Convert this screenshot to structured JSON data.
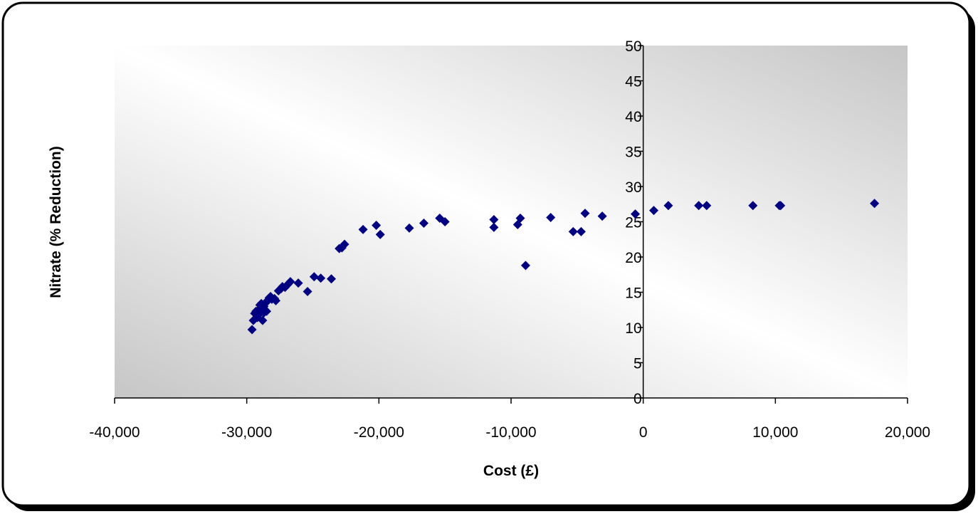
{
  "chart_data": {
    "type": "scatter",
    "title": "",
    "xlabel": "Cost (£)",
    "ylabel": "Nitrate (% Reduction)",
    "xlim": [
      -40000,
      20000
    ],
    "ylim": [
      0,
      50
    ],
    "x_ticks": [
      -40000,
      -30000,
      -20000,
      -10000,
      0,
      10000,
      20000
    ],
    "x_tick_labels": [
      "-40,000",
      "-30,000",
      "-20,000",
      "-10,000",
      "0",
      "10,000",
      "20,000"
    ],
    "y_ticks": [
      0,
      5,
      10,
      15,
      20,
      25,
      30,
      35,
      40,
      45,
      50
    ],
    "y_tick_labels": [
      "0",
      "5",
      "10",
      "15",
      "20",
      "25",
      "30",
      "35",
      "40",
      "45",
      "50"
    ],
    "grid": false,
    "legend": "none",
    "marker": "diamond",
    "marker_color": "#000080",
    "series": [
      {
        "x": [
          -29600,
          -29500,
          -29400,
          -29300,
          -29200,
          -29100,
          -29000,
          -29000,
          -28900,
          -28800,
          -28700,
          -28700,
          -28600,
          -28500,
          -28400,
          -28300,
          -28200,
          -28100,
          -27900,
          -27800,
          -27600,
          -27400,
          -27300,
          -27100,
          -26900,
          -26700,
          -26100,
          -25400,
          -24900,
          -24400,
          -23600,
          -23000,
          -22800,
          -22600,
          -21200,
          -20200,
          -19900,
          -17700,
          -16600,
          -15400,
          -15000,
          -11300,
          -11300,
          -9500,
          -9300,
          -8900,
          -7000,
          -5300,
          -4700,
          -4400,
          -3100,
          -600,
          800,
          1900,
          4200,
          4800,
          8300,
          10300,
          10400,
          17500
        ],
        "y": [
          9.7,
          11.0,
          12.0,
          12.3,
          11.4,
          12.5,
          13.2,
          12.0,
          13.4,
          11.0,
          12.1,
          13.0,
          13.5,
          12.3,
          13.8,
          14.2,
          14.4,
          14.0,
          14.1,
          13.8,
          15.2,
          15.5,
          15.8,
          15.7,
          16.1,
          16.5,
          16.3,
          15.1,
          17.2,
          17.0,
          16.9,
          21.2,
          21.3,
          21.8,
          23.9,
          24.5,
          23.2,
          24.1,
          24.8,
          25.5,
          25.0,
          25.3,
          24.2,
          24.6,
          25.5,
          18.8,
          25.6,
          23.6,
          23.6,
          26.2,
          25.8,
          26.1,
          26.6,
          27.3,
          27.3,
          27.3,
          27.3,
          27.3,
          27.3,
          27.6
        ]
      }
    ]
  }
}
